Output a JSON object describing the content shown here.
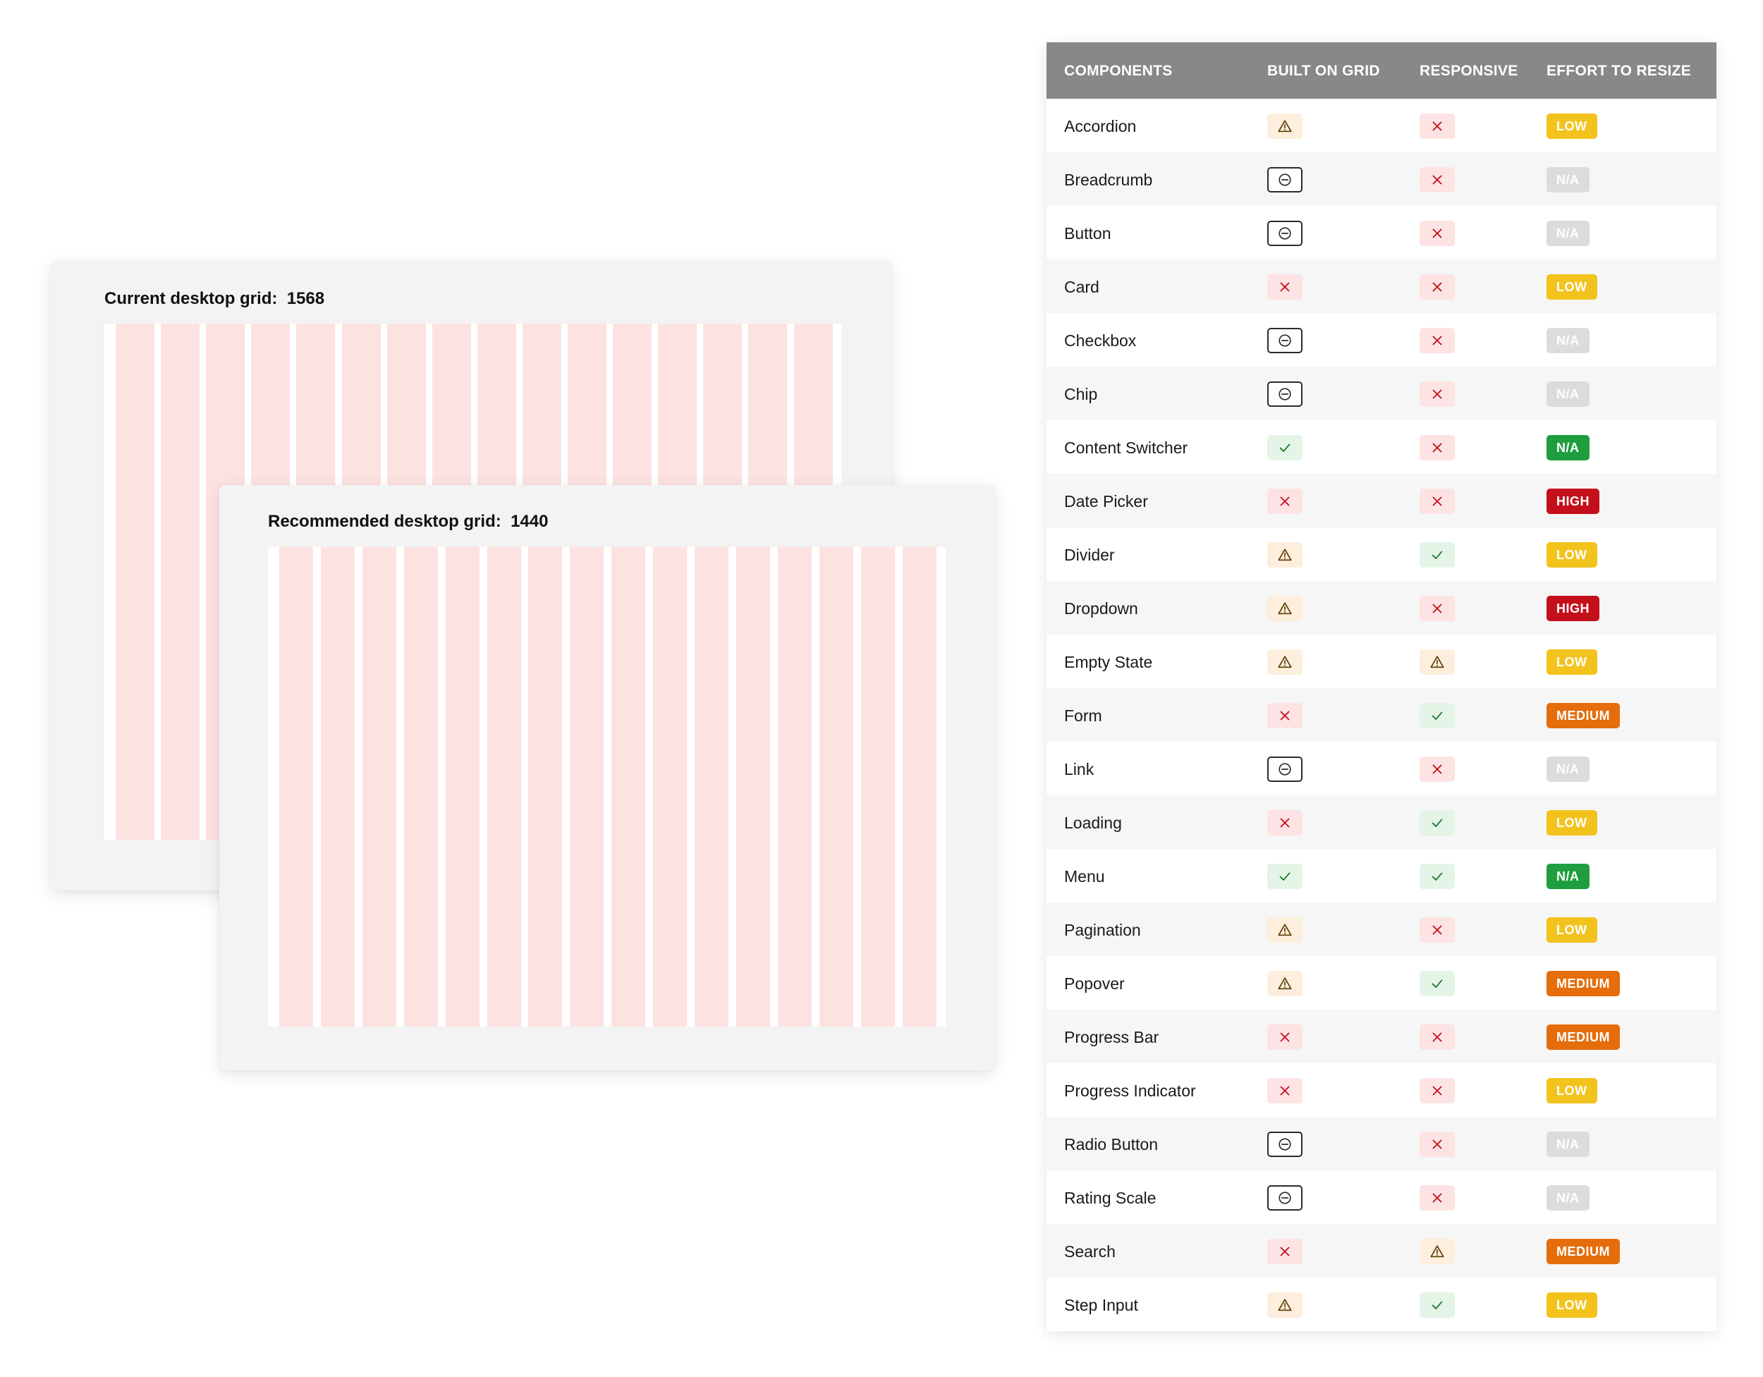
{
  "grids": {
    "current": {
      "label": "Current desktop grid:",
      "value": "1568",
      "columns": 16
    },
    "recommended": {
      "label": "Recommended desktop grid:",
      "value": "1440",
      "columns": 16
    }
  },
  "table": {
    "headers": {
      "component": "COMPONENTS",
      "built_on_grid": "BUILT ON GRID",
      "responsive": "RESPONSIVE",
      "effort": "EFFORT TO RESIZE"
    },
    "status_icons": {
      "warning": "warning-icon",
      "cross": "cross-icon",
      "check": "check-icon",
      "minus": "minus-circle-icon"
    },
    "effort_colors": {
      "low": "#f2c31d",
      "na": "#dcdcdc",
      "na-green": "#1e9e3e",
      "high": "#c4101b",
      "medium": "#e56d0c"
    },
    "rows": [
      {
        "name": "Accordion",
        "grid": "warning",
        "responsive": "cross",
        "effort": "LOW",
        "effort_style": "low"
      },
      {
        "name": "Breadcrumb",
        "grid": "minus",
        "responsive": "cross",
        "effort": "N/A",
        "effort_style": "na"
      },
      {
        "name": "Button",
        "grid": "minus",
        "responsive": "cross",
        "effort": "N/A",
        "effort_style": "na"
      },
      {
        "name": "Card",
        "grid": "cross",
        "responsive": "cross",
        "effort": "LOW",
        "effort_style": "low"
      },
      {
        "name": "Checkbox",
        "grid": "minus",
        "responsive": "cross",
        "effort": "N/A",
        "effort_style": "na"
      },
      {
        "name": "Chip",
        "grid": "minus",
        "responsive": "cross",
        "effort": "N/A",
        "effort_style": "na"
      },
      {
        "name": "Content Switcher",
        "grid": "check",
        "responsive": "cross",
        "effort": "N/A",
        "effort_style": "na-green"
      },
      {
        "name": "Date Picker",
        "grid": "cross",
        "responsive": "cross",
        "effort": "HIGH",
        "effort_style": "high"
      },
      {
        "name": "Divider",
        "grid": "warning",
        "responsive": "check",
        "effort": "LOW",
        "effort_style": "low"
      },
      {
        "name": "Dropdown",
        "grid": "warning",
        "responsive": "cross",
        "effort": "HIGH",
        "effort_style": "high"
      },
      {
        "name": "Empty State",
        "grid": "warning",
        "responsive": "warning",
        "effort": "LOW",
        "effort_style": "low"
      },
      {
        "name": "Form",
        "grid": "cross",
        "responsive": "check",
        "effort": "MEDIUM",
        "effort_style": "medium"
      },
      {
        "name": "Link",
        "grid": "minus",
        "responsive": "cross",
        "effort": "N/A",
        "effort_style": "na"
      },
      {
        "name": "Loading",
        "grid": "cross",
        "responsive": "check",
        "effort": "LOW",
        "effort_style": "low"
      },
      {
        "name": "Menu",
        "grid": "check",
        "responsive": "check",
        "effort": "N/A",
        "effort_style": "na-green"
      },
      {
        "name": "Pagination",
        "grid": "warning",
        "responsive": "cross",
        "effort": "LOW",
        "effort_style": "low"
      },
      {
        "name": "Popover",
        "grid": "warning",
        "responsive": "check",
        "effort": "MEDIUM",
        "effort_style": "medium"
      },
      {
        "name": "Progress Bar",
        "grid": "cross",
        "responsive": "cross",
        "effort": "MEDIUM",
        "effort_style": "medium"
      },
      {
        "name": "Progress Indicator",
        "grid": "cross",
        "responsive": "cross",
        "effort": "LOW",
        "effort_style": "low"
      },
      {
        "name": "Radio Button",
        "grid": "minus",
        "responsive": "cross",
        "effort": "N/A",
        "effort_style": "na"
      },
      {
        "name": "Rating Scale",
        "grid": "minus",
        "responsive": "cross",
        "effort": "N/A",
        "effort_style": "na"
      },
      {
        "name": "Search",
        "grid": "cross",
        "responsive": "warning",
        "effort": "MEDIUM",
        "effort_style": "medium"
      },
      {
        "name": "Step Input",
        "grid": "warning",
        "responsive": "check",
        "effort": "LOW",
        "effort_style": "low"
      }
    ]
  }
}
